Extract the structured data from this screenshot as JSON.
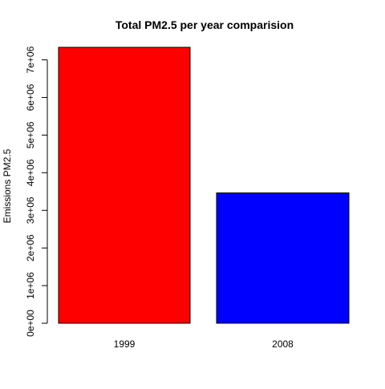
{
  "chart_data": {
    "type": "bar",
    "title": "Total PM2.5 per year comparision",
    "xlabel": "",
    "ylabel": "Emissions PM2.5",
    "categories": [
      "1999",
      "2008"
    ],
    "values": [
      7332967,
      3464206
    ],
    "colors": [
      "#ff0000",
      "#0000ff"
    ],
    "ylim": [
      0,
      7332967
    ],
    "yticks": [
      0,
      1000000,
      2000000,
      3000000,
      4000000,
      5000000,
      6000000,
      7000000
    ],
    "ytick_labels": [
      "0e+00",
      "1e+06",
      "2e+06",
      "3e+06",
      "4e+06",
      "5e+06",
      "6e+06",
      "7e+06"
    ],
    "grid": false,
    "legend": "none"
  }
}
